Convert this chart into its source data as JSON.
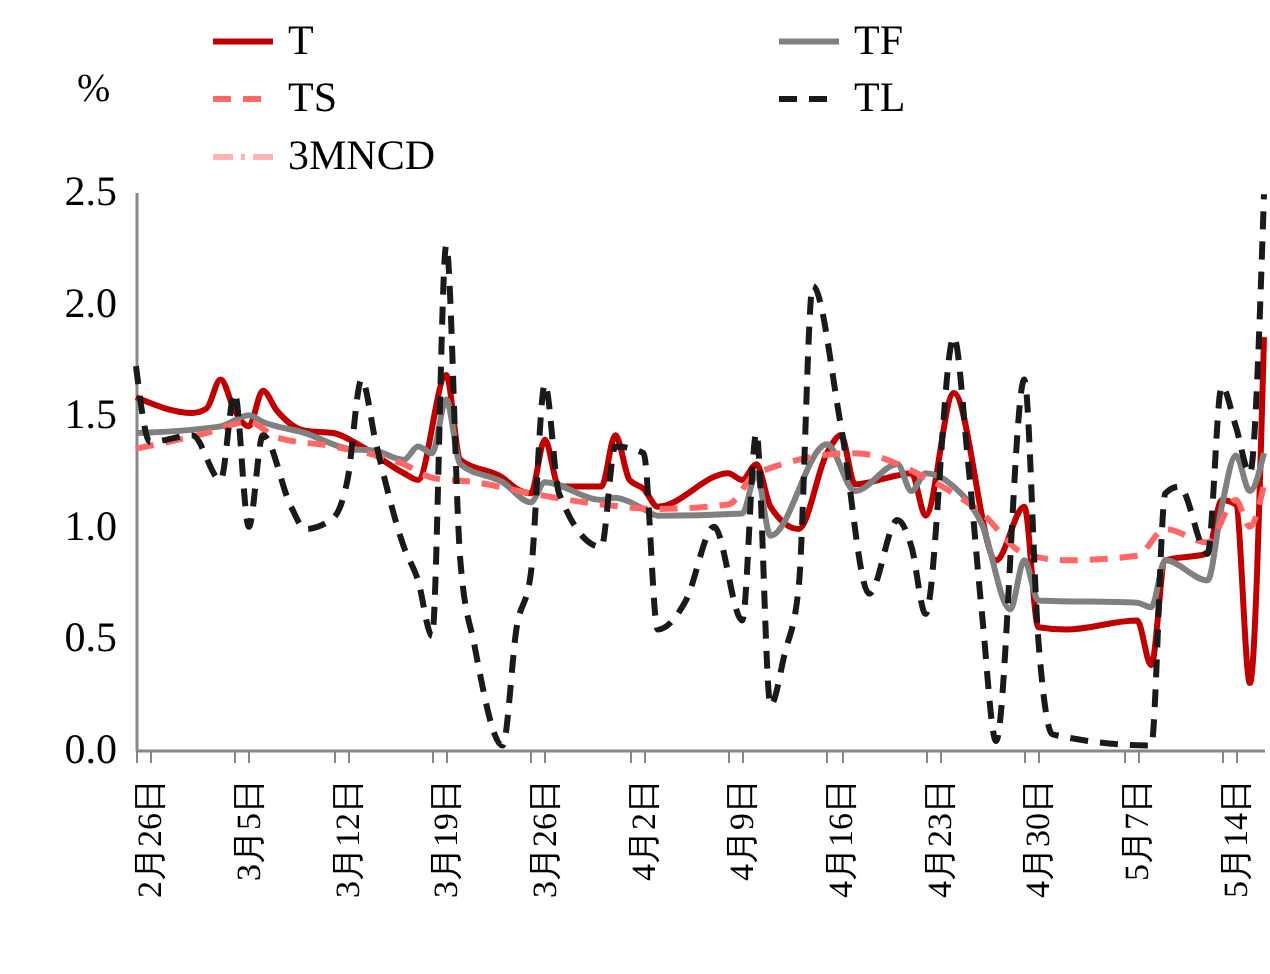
{
  "chart_data": {
    "type": "line",
    "ylabel": "%",
    "legend": "top",
    "grid": false,
    "xlim": [
      "--02-25",
      "--05-16"
    ],
    "xticks": [
      {
        "value": "--02-25",
        "label": null
      },
      {
        "value": "--02-26",
        "label": "2月26日"
      },
      {
        "value": "--03-04",
        "label": null
      },
      {
        "value": "--03-05",
        "label": "3月5日"
      },
      {
        "value": "--03-11",
        "label": null
      },
      {
        "value": "--03-12",
        "label": "3月12日"
      },
      {
        "value": "--03-18",
        "label": null
      },
      {
        "value": "--03-19",
        "label": "3月19日"
      },
      {
        "value": "--03-25",
        "label": null
      },
      {
        "value": "--03-26",
        "label": "3月26日"
      },
      {
        "value": "--04-01",
        "label": null
      },
      {
        "value": "--04-02",
        "label": "4月2日"
      },
      {
        "value": "--04-08",
        "label": null
      },
      {
        "value": "--04-09",
        "label": "4月9日"
      },
      {
        "value": "--04-15",
        "label": null
      },
      {
        "value": "--04-16",
        "label": "4月16日"
      },
      {
        "value": "--04-22",
        "label": null
      },
      {
        "value": "--04-23",
        "label": "4月23日"
      },
      {
        "value": "--04-29",
        "label": null
      },
      {
        "value": "--04-30",
        "label": "4月30日"
      },
      {
        "value": "--05-06",
        "label": null
      },
      {
        "value": "--05-07",
        "label": "5月7日"
      },
      {
        "value": "--05-13",
        "label": null
      },
      {
        "value": "--05-14",
        "label": "5月14日"
      }
    ],
    "ylim": [
      0,
      2.5
    ],
    "yticks": [
      {
        "value": 0,
        "label": "0.0"
      },
      {
        "value": 0.5,
        "label": "0.5"
      },
      {
        "value": 1,
        "label": "1.0"
      },
      {
        "value": 1.5,
        "label": "1.5"
      },
      {
        "value": 2,
        "label": "2.0"
      },
      {
        "value": 2.5,
        "label": "2.5"
      }
    ],
    "series": [
      {
        "name": "T",
        "color": "#c00000",
        "line_style": "solid",
        "x": [
          "--02-25",
          "--03-01",
          "--03-02",
          "--03-03",
          "--03-04",
          "--03-05",
          "--03-06",
          "--03-07",
          "--03-09",
          "--03-11",
          "--03-13",
          "--03-16",
          "--03-17",
          "--03-19",
          "--03-20",
          "--03-23",
          "--03-24",
          "--03-25",
          "--03-26",
          "--03-27",
          "--03-30",
          "--03-31",
          "--04-01",
          "--04-02",
          "--04-03",
          "--04-08",
          "--04-09",
          "--04-10",
          "--04-11",
          "--04-13",
          "--04-15",
          "--04-16",
          "--04-17",
          "--04-20",
          "--04-21",
          "--04-22",
          "--04-24",
          "--04-27",
          "--04-29",
          "--04-30",
          "--05-02",
          "--05-07",
          "--05-08",
          "--05-09",
          "--05-12",
          "--05-13",
          "--05-14",
          "--05-15",
          "--05-16"
        ],
        "values": [
          1.58,
          1.51,
          1.53,
          1.66,
          1.52,
          1.45,
          1.61,
          1.52,
          1.43,
          1.42,
          1.36,
          1.24,
          1.21,
          1.68,
          1.3,
          1.22,
          1.17,
          1.15,
          1.39,
          1.18,
          1.18,
          1.41,
          1.21,
          1.17,
          1.09,
          1.24,
          1.21,
          1.28,
          1.09,
          0.99,
          1.33,
          1.41,
          1.19,
          1.23,
          1.24,
          1.05,
          1.6,
          0.85,
          1.09,
          0.55,
          0.54,
          0.58,
          0.38,
          0.85,
          0.88,
          1.12,
          1.1,
          0.3,
          1.85
        ]
      },
      {
        "name": "TF",
        "color": "#808080",
        "line_style": "solid",
        "x": [
          "--02-25",
          "--03-03",
          "--03-05",
          "--03-06",
          "--03-09",
          "--03-12",
          "--03-14",
          "--03-16",
          "--03-17",
          "--03-18",
          "--03-19",
          "--03-20",
          "--03-23",
          "--03-25",
          "--03-26",
          "--03-30",
          "--03-31",
          "--04-02",
          "--04-03",
          "--04-09",
          "--04-10",
          "--04-11",
          "--04-15",
          "--04-17",
          "--04-20",
          "--04-21",
          "--04-22",
          "--04-24",
          "--04-26",
          "--04-28",
          "--04-29",
          "--04-30",
          "--05-07",
          "--05-08",
          "--05-09",
          "--05-12",
          "--05-13",
          "--05-14",
          "--05-15",
          "--05-16"
        ],
        "values": [
          1.42,
          1.45,
          1.5,
          1.47,
          1.42,
          1.35,
          1.34,
          1.3,
          1.36,
          1.33,
          1.57,
          1.28,
          1.2,
          1.11,
          1.2,
          1.12,
          1.13,
          1.08,
          1.05,
          1.06,
          1.24,
          0.96,
          1.37,
          1.16,
          1.28,
          1.16,
          1.24,
          1.18,
          1.01,
          0.63,
          0.85,
          0.67,
          0.66,
          0.64,
          0.85,
          0.76,
          1.09,
          1.32,
          1.16,
          1.33
        ]
      },
      {
        "name": "TS",
        "color": "#ff6666",
        "line_style": "dashed",
        "x": [
          "--02-25",
          "--03-02",
          "--03-05",
          "--03-07",
          "--03-11",
          "--03-16",
          "--03-18",
          "--03-21",
          "--03-25",
          "--03-30",
          "--04-03",
          "--04-08",
          "--04-10",
          "--04-17",
          "--04-22",
          "--04-26",
          "--04-29",
          "--05-02",
          "--05-07",
          "--05-09",
          "--05-12",
          "--05-14",
          "--05-15",
          "--05-16"
        ],
        "values": [
          1.35,
          1.42,
          1.47,
          1.4,
          1.36,
          1.28,
          1.22,
          1.2,
          1.15,
          1.1,
          1.08,
          1.1,
          1.24,
          1.33,
          1.22,
          1.06,
          0.88,
          0.85,
          0.87,
          0.99,
          0.93,
          1.12,
          1.0,
          1.19
        ]
      },
      {
        "name": "TL",
        "color": "#1a1a1a",
        "line_style": "dashed",
        "x": [
          "--02-25",
          "--02-26",
          "--03-01",
          "--03-03",
          "--03-04",
          "--03-05",
          "--03-06",
          "--03-08",
          "--03-09",
          "--03-11",
          "--03-12",
          "--03-13",
          "--03-14",
          "--03-16",
          "--03-17",
          "--03-18",
          "--03-19",
          "--03-20",
          "--03-21",
          "--03-23",
          "--03-24",
          "--03-25",
          "--03-26",
          "--03-27",
          "--03-30",
          "--03-31",
          "--04-02",
          "--04-03",
          "--04-05",
          "--04-07",
          "--04-09",
          "--04-10",
          "--04-11",
          "--04-12",
          "--04-13",
          "--04-14",
          "--04-16",
          "--04-18",
          "--04-20",
          "--04-21",
          "--04-22",
          "--04-24",
          "--04-25",
          "--04-26",
          "--04-27",
          "--04-29",
          "--04-30",
          "--05-01",
          "--05-08",
          "--05-09",
          "--05-10",
          "--05-12",
          "--05-13",
          "--05-14",
          "--05-15",
          "--05-16"
        ],
        "values": [
          1.72,
          1.38,
          1.41,
          1.21,
          1.6,
          1.0,
          1.41,
          1.09,
          0.99,
          1.04,
          1.21,
          1.66,
          1.38,
          0.91,
          0.76,
          0.51,
          2.26,
          0.85,
          0.47,
          0.02,
          0.55,
          0.79,
          1.64,
          1.15,
          0.91,
          1.36,
          1.33,
          0.54,
          0.67,
          1.0,
          0.58,
          1.42,
          0.2,
          0.43,
          0.73,
          2.08,
          1.45,
          0.7,
          1.03,
          0.91,
          0.61,
          1.85,
          1.3,
          0.61,
          0.04,
          1.66,
          0.49,
          0.07,
          0.02,
          1.15,
          1.18,
          0.88,
          1.63,
          1.45,
          1.24,
          2.49
        ]
      },
      {
        "name": "3MNCD",
        "color": "#ffb3b3",
        "line_style": "dashdot"
      }
    ]
  }
}
